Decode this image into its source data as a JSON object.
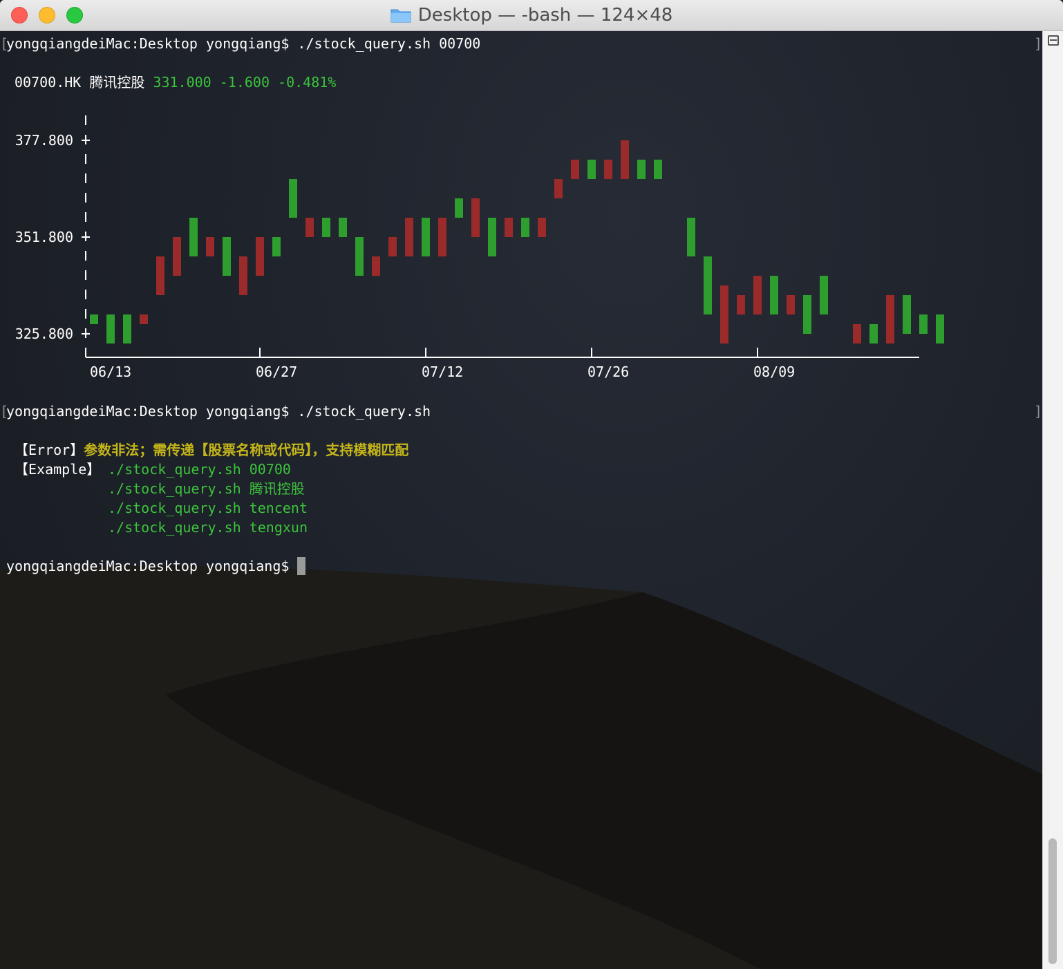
{
  "window": {
    "title": "Desktop — -bash — 124×48"
  },
  "terminal": {
    "prompt1": "yongqiangdeiMac:Desktop yongqiang$ ./stock_query.sh 00700",
    "quote": {
      "code": "00700.HK 腾讯控股",
      "price_change": "331.000 -1.600 -0.481%"
    },
    "prompt2": "yongqiangdeiMac:Desktop yongqiang$ ./stock_query.sh",
    "error_tag": "【Error】",
    "error_msg": "参数非法；需传递【股票名称或代码】，支持模糊匹配",
    "example_tag": "【Example】",
    "examples": [
      "./stock_query.sh 00700",
      "./stock_query.sh 腾讯控股",
      "./stock_query.sh tencent",
      "./stock_query.sh tengxun"
    ],
    "prompt3": "yongqiangdeiMac:Desktop yongqiang$ "
  },
  "colors": {
    "up": "#9b2a2a",
    "down": "#2e9e2e",
    "text": "#ffffff",
    "green_text": "#3cc43c",
    "yellow_text": "#c4b51a"
  },
  "chart_data": {
    "type": "bar",
    "ylabel_ticks": [
      "377.800",
      "351.800",
      "325.800"
    ],
    "y_ticks": [
      377.8,
      351.8,
      325.8
    ],
    "ylim": [
      320.6,
      382.9
    ],
    "x_ticks": [
      "06/13",
      "06/27",
      "07/12",
      "07/26",
      "08/09"
    ],
    "candles": [
      {
        "low": 328.4,
        "high": 331.0,
        "color": "down"
      },
      {
        "low": 323.2,
        "high": 331.0,
        "color": "down"
      },
      {
        "low": 323.2,
        "high": 331.0,
        "color": "down"
      },
      {
        "low": 328.4,
        "high": 331.0,
        "color": "up"
      },
      {
        "low": 336.2,
        "high": 346.6,
        "color": "up"
      },
      {
        "low": 341.4,
        "high": 351.8,
        "color": "up"
      },
      {
        "low": 346.6,
        "high": 357.0,
        "color": "down"
      },
      {
        "low": 346.6,
        "high": 351.8,
        "color": "up"
      },
      {
        "low": 341.4,
        "high": 351.8,
        "color": "down"
      },
      {
        "low": 336.2,
        "high": 346.6,
        "color": "up"
      },
      {
        "low": 341.4,
        "high": 351.8,
        "color": "up"
      },
      {
        "low": 346.6,
        "high": 351.8,
        "color": "down"
      },
      {
        "low": 357.0,
        "high": 367.4,
        "color": "down"
      },
      {
        "low": 351.8,
        "high": 357.0,
        "color": "up"
      },
      {
        "low": 351.8,
        "high": 357.0,
        "color": "down"
      },
      {
        "low": 351.8,
        "high": 357.0,
        "color": "down"
      },
      {
        "low": 341.4,
        "high": 351.8,
        "color": "down"
      },
      {
        "low": 341.4,
        "high": 346.6,
        "color": "up"
      },
      {
        "low": 346.6,
        "high": 351.8,
        "color": "up"
      },
      {
        "low": 346.6,
        "high": 357.0,
        "color": "up"
      },
      {
        "low": 346.6,
        "high": 357.0,
        "color": "down"
      },
      {
        "low": 346.6,
        "high": 357.0,
        "color": "up"
      },
      {
        "low": 357.0,
        "high": 362.2,
        "color": "down"
      },
      {
        "low": 351.8,
        "high": 362.2,
        "color": "up"
      },
      {
        "low": 346.6,
        "high": 357.0,
        "color": "down"
      },
      {
        "low": 351.8,
        "high": 357.0,
        "color": "up"
      },
      {
        "low": 351.8,
        "high": 357.0,
        "color": "down"
      },
      {
        "low": 351.8,
        "high": 357.0,
        "color": "up"
      },
      {
        "low": 362.2,
        "high": 367.4,
        "color": "up"
      },
      {
        "low": 367.4,
        "high": 372.6,
        "color": "up"
      },
      {
        "low": 367.4,
        "high": 372.6,
        "color": "down"
      },
      {
        "low": 367.4,
        "high": 372.6,
        "color": "up"
      },
      {
        "low": 367.4,
        "high": 377.8,
        "color": "up"
      },
      {
        "low": 367.4,
        "high": 372.6,
        "color": "down"
      },
      {
        "low": 367.4,
        "high": 372.6,
        "color": "down"
      },
      null,
      {
        "low": 346.6,
        "high": 357.0,
        "color": "down"
      },
      {
        "low": 331.0,
        "high": 346.6,
        "color": "down"
      },
      {
        "low": 323.2,
        "high": 338.8,
        "color": "up"
      },
      {
        "low": 331.0,
        "high": 336.2,
        "color": "up"
      },
      {
        "low": 331.0,
        "high": 341.4,
        "color": "up"
      },
      {
        "low": 331.0,
        "high": 341.4,
        "color": "down"
      },
      {
        "low": 331.0,
        "high": 336.2,
        "color": "up"
      },
      {
        "low": 325.8,
        "high": 336.2,
        "color": "down"
      },
      {
        "low": 331.0,
        "high": 341.4,
        "color": "down"
      },
      null,
      {
        "low": 323.2,
        "high": 328.4,
        "color": "up"
      },
      {
        "low": 323.2,
        "high": 328.4,
        "color": "down"
      },
      {
        "low": 323.2,
        "high": 336.2,
        "color": "up"
      },
      {
        "low": 325.8,
        "high": 336.2,
        "color": "down"
      },
      {
        "low": 325.8,
        "high": 331.0,
        "color": "down"
      },
      {
        "low": 323.2,
        "high": 331.0,
        "color": "down"
      }
    ]
  }
}
